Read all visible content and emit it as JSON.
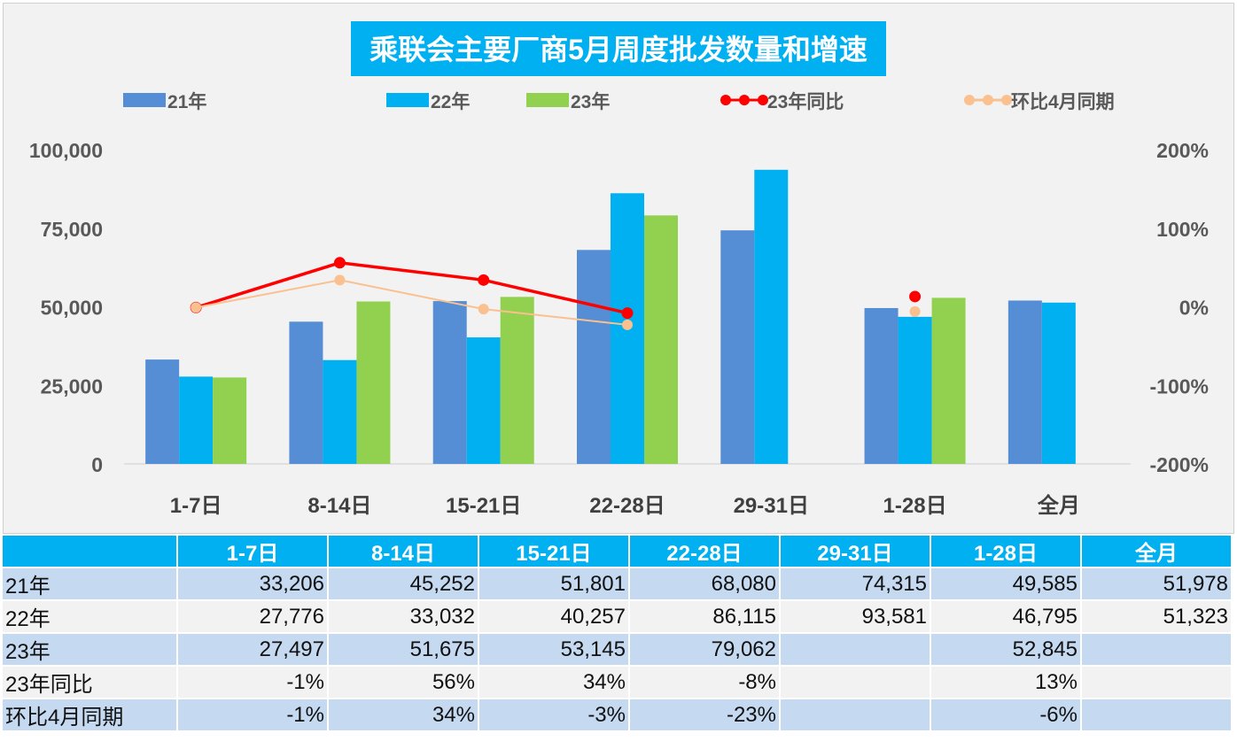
{
  "chart_data": {
    "type": "bar",
    "title": "乘联会主要厂商5月周度批发数量和增速",
    "categories": [
      "1-7日",
      "8-14日",
      "15-21日",
      "22-28日",
      "29-31日",
      "1-28日",
      "全月"
    ],
    "series": [
      {
        "name": "21年",
        "kind": "bar",
        "color": "#558ed5",
        "values": [
          33206,
          45252,
          51801,
          68080,
          74315,
          49585,
          51978
        ]
      },
      {
        "name": "22年",
        "kind": "bar",
        "color": "#00b0f0",
        "values": [
          27776,
          33032,
          40257,
          86115,
          93581,
          46795,
          51323
        ]
      },
      {
        "name": "23年",
        "kind": "bar",
        "color": "#92d050",
        "values": [
          27497,
          51675,
          53145,
          79062,
          null,
          52845,
          null
        ]
      },
      {
        "name": "23年同比",
        "kind": "line",
        "axis": "right",
        "color": "#ff0000",
        "values": [
          -1,
          56,
          34,
          -8,
          null,
          13,
          null
        ]
      },
      {
        "name": "环比4月同期",
        "kind": "line",
        "axis": "right",
        "color": "#fac090",
        "values": [
          -1,
          34,
          -3,
          -23,
          null,
          -6,
          null
        ]
      }
    ],
    "y_left": {
      "ylim": [
        0,
        100000
      ],
      "ticks": [
        "0",
        "25,000",
        "50,000",
        "75,000",
        "100,000"
      ]
    },
    "y_right": {
      "ylim": [
        -200,
        200
      ],
      "ticks": [
        "-200%",
        "-100%",
        "0%",
        "100%",
        "200%"
      ]
    },
    "legend": "top",
    "grid": false
  },
  "table": {
    "header": [
      "",
      "1-7日",
      "8-14日",
      "15-21日",
      "22-28日",
      "29-31日",
      "1-28日",
      "全月"
    ],
    "rows": [
      [
        "21年",
        "33,206",
        "45,252",
        "51,801",
        "68,080",
        "74,315",
        "49,585",
        "51,978"
      ],
      [
        "22年",
        "27,776",
        "33,032",
        "40,257",
        "86,115",
        "93,581",
        "46,795",
        "51,323"
      ],
      [
        "23年",
        "27,497",
        "51,675",
        "53,145",
        "79,062",
        "",
        "52,845",
        ""
      ],
      [
        "23年同比",
        "-1%",
        "56%",
        "34%",
        "-8%",
        "",
        "13%",
        ""
      ],
      [
        "环比4月同期",
        "-1%",
        "34%",
        "-3%",
        "-23%",
        "",
        "-6%",
        ""
      ]
    ]
  }
}
